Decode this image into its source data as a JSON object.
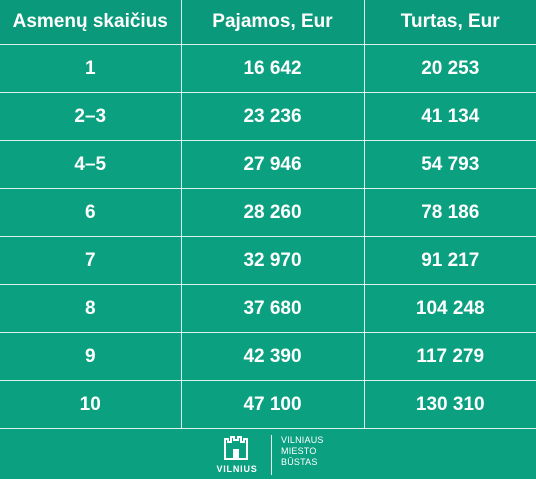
{
  "table": {
    "headers": [
      "Asmenų skaičius",
      "Pajamos, Eur",
      "Turtas, Eur"
    ],
    "rows": [
      [
        "1",
        "16 642",
        "20 253"
      ],
      [
        "2–3",
        "23 236",
        "41 134"
      ],
      [
        "4–5",
        "27 946",
        "54 793"
      ],
      [
        "6",
        "28 260",
        "78 186"
      ],
      [
        "7",
        "32 970",
        "91 217"
      ],
      [
        "8",
        "37 680",
        "104 248"
      ],
      [
        "9",
        "42 390",
        "117 279"
      ],
      [
        "10",
        "47 100",
        "130 310"
      ]
    ]
  },
  "logo": {
    "city": "VILNIUS",
    "brand_line1": "VILNIAUS",
    "brand_line2": "MIESTO",
    "brand_line3": "BŪSTAS"
  },
  "colors": {
    "background": "#0aa080",
    "header": "#0a9a7b",
    "text": "#ffffff"
  }
}
